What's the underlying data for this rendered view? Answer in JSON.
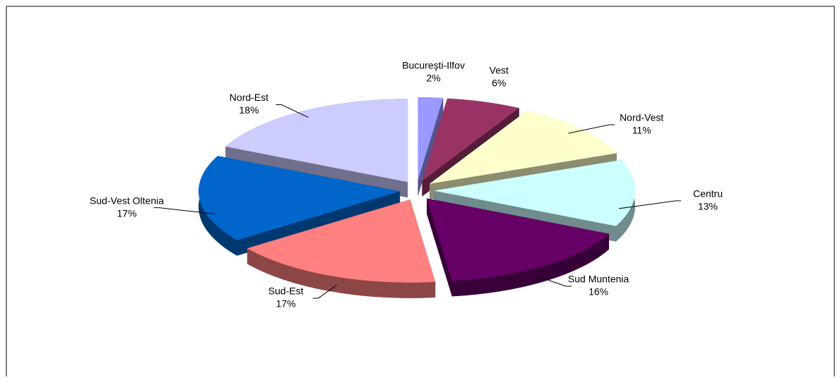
{
  "chart_data": {
    "type": "pie3d",
    "categories": [
      "Bucureşti-Ilfov",
      "Vest",
      "Nord-Vest",
      "Centru",
      "Sud Muntenia",
      "Sud-Est",
      "Sud-Vest Oltenia",
      "Nord-Est"
    ],
    "values": [
      2,
      6,
      11,
      13,
      16,
      17,
      17,
      18
    ],
    "value_labels": [
      "2%",
      "6%",
      "11%",
      "13%",
      "16%",
      "17%",
      "17%",
      "18%"
    ],
    "colors": [
      "#9999ff",
      "#993366",
      "#ffffcc",
      "#ccffff",
      "#660066",
      "#ff8080",
      "#0066cc",
      "#ccccff"
    ]
  }
}
